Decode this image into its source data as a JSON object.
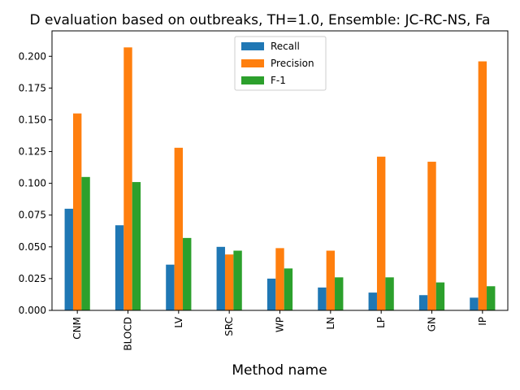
{
  "chart_data": {
    "type": "bar",
    "title": "D evaluation based on outbreaks, TH=1.0, Ensemble: JC-RC-NS, Fa",
    "xlabel": "Method name",
    "ylabel": "",
    "ylim": [
      0,
      0.22
    ],
    "yticks": [
      0.0,
      0.025,
      0.05,
      0.075,
      0.1,
      0.125,
      0.15,
      0.175,
      0.2
    ],
    "ytick_labels": [
      "0.000",
      "0.025",
      "0.050",
      "0.075",
      "0.100",
      "0.125",
      "0.150",
      "0.175",
      "0.200"
    ],
    "categories": [
      "CNM",
      "BLOCD",
      "LV",
      "SRC",
      "WP",
      "LN",
      "LP",
      "GN",
      "IP"
    ],
    "legend_position": "top-center",
    "grid": false,
    "series": [
      {
        "name": "Recall",
        "color": "#1f77b4",
        "values": [
          0.08,
          0.067,
          0.036,
          0.05,
          0.025,
          0.018,
          0.014,
          0.012,
          0.01
        ]
      },
      {
        "name": "Precision",
        "color": "#ff7f0e",
        "values": [
          0.155,
          0.207,
          0.128,
          0.044,
          0.049,
          0.047,
          0.121,
          0.117,
          0.196
        ]
      },
      {
        "name": "F-1",
        "color": "#2ca02c",
        "values": [
          0.105,
          0.101,
          0.057,
          0.047,
          0.033,
          0.026,
          0.026,
          0.022,
          0.019
        ]
      }
    ]
  }
}
